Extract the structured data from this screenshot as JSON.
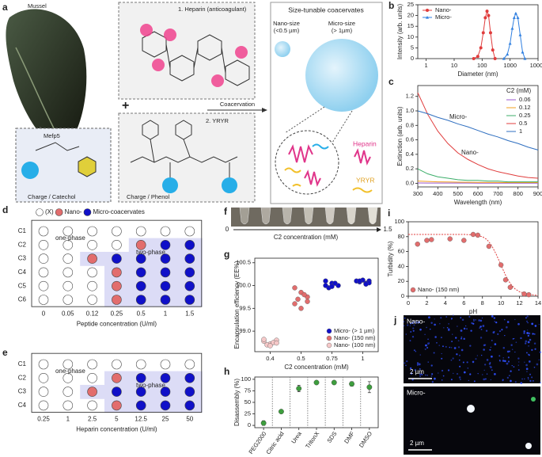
{
  "panel_labels": [
    "a",
    "b",
    "c",
    "d",
    "e",
    "f",
    "g",
    "h",
    "i",
    "j"
  ],
  "diagram": {
    "mussel": "Mussel",
    "mefp5": "Mefp5",
    "charge_catechol": "Charge / Catechol",
    "heparin_title": "1. Heparin (anticoagulant)",
    "yryr_title": "2. YRYR",
    "charge_phenol": "Charge / Phenol",
    "plus": "+",
    "arrow": "Coacervation",
    "coacervates_title": "Size-tunable coacervates",
    "nano_size": "Nano-size",
    "nano_range": "(<0.5 µm)",
    "micro_size": "Micro-size",
    "micro_range": "(> 1µm)",
    "heparin": "Heparin",
    "yryr": "YRYR"
  },
  "chart_data": [
    {
      "type": "line",
      "xlabel": "Diameter (nm)",
      "ylabel": "Intensity (arb. units)",
      "xscale": "log",
      "xlim": [
        0.5,
        10000
      ],
      "xticks": [
        1,
        10,
        100,
        1000,
        10000
      ],
      "ylim": [
        0,
        25
      ],
      "yticks": [
        0,
        5,
        10,
        15,
        20,
        25
      ],
      "legend": "upper left",
      "series": [
        {
          "name": "Nano-",
          "color": "#e03c3c",
          "marker": "circle",
          "x": [
            50,
            70,
            90,
            110,
            130,
            150,
            170,
            200,
            240,
            290
          ],
          "values": [
            0,
            1,
            5,
            12,
            19,
            22,
            20,
            12,
            4,
            0
          ]
        },
        {
          "name": "Micro-",
          "color": "#2f7fe0",
          "marker": "triangle",
          "x": [
            600,
            800,
            1000,
            1200,
            1400,
            1600,
            1900,
            2300,
            2800,
            3400
          ],
          "values": [
            0,
            2,
            7,
            14,
            19,
            21,
            19,
            11,
            3,
            0
          ]
        }
      ]
    },
    {
      "type": "line",
      "xlabel": "Wavelength (nm)",
      "ylabel": "Extinction (arb. units)",
      "xlim": [
        300,
        900
      ],
      "xticks": [
        300,
        400,
        500,
        600,
        700,
        800,
        900
      ],
      "ylim": [
        -0.05,
        1.35
      ],
      "yticks": [
        {
          "value": 0,
          "label": "0.0"
        },
        0.2,
        0.4,
        0.6,
        0.8,
        {
          "value": 1,
          "label": "1.0"
        },
        1.2
      ],
      "legend": "upper right",
      "legend_title": "C2 (mM)",
      "annotations": [
        "Micro-",
        "Nano-"
      ],
      "series": [
        {
          "name": "0.06",
          "color": "#9b59d0",
          "x": [
            300,
            350,
            400,
            450,
            500,
            550,
            600,
            650,
            700,
            750,
            800,
            850,
            900
          ],
          "values": [
            0.005,
            0.004,
            0.004,
            0.003,
            0.003,
            0.003,
            0.002,
            0.002,
            0.002,
            0.002,
            0.002,
            0.002,
            0.002
          ]
        },
        {
          "name": "0.12",
          "color": "#f0a020",
          "x": [
            300,
            350,
            400,
            450,
            500,
            550,
            600,
            650,
            700,
            750,
            800,
            850,
            900
          ],
          "values": [
            0.03,
            0.025,
            0.02,
            0.018,
            0.016,
            0.014,
            0.013,
            0.012,
            0.011,
            0.01,
            0.01,
            0.01,
            0.01
          ]
        },
        {
          "name": "0.25",
          "color": "#3cae6a",
          "x": [
            300,
            350,
            400,
            450,
            500,
            550,
            600,
            650,
            700,
            750,
            800,
            850,
            900
          ],
          "values": [
            0.2,
            0.13,
            0.09,
            0.07,
            0.05,
            0.04,
            0.04,
            0.03,
            0.03,
            0.02,
            0.02,
            0.02,
            0.02
          ]
        },
        {
          "name": "0.5",
          "color": "#e03c3c",
          "x": [
            300,
            350,
            400,
            450,
            500,
            550,
            600,
            650,
            700,
            750,
            800,
            850,
            900
          ],
          "values": [
            1.25,
            0.95,
            0.72,
            0.55,
            0.42,
            0.33,
            0.26,
            0.2,
            0.16,
            0.13,
            0.1,
            0.08,
            0.07
          ]
        },
        {
          "name": "1",
          "color": "#2f6fc0",
          "x": [
            300,
            350,
            400,
            450,
            500,
            550,
            600,
            650,
            700,
            750,
            800,
            850,
            900
          ],
          "values": [
            1.0,
            0.96,
            0.91,
            0.87,
            0.82,
            0.78,
            0.73,
            0.68,
            0.64,
            0.59,
            0.55,
            0.5,
            0.46
          ]
        }
      ]
    },
    {
      "type": "dot-grid",
      "rows": [
        "C1",
        "C2",
        "C3",
        "C4",
        "C5",
        "C6"
      ],
      "categories": [
        "0",
        "0.05",
        "0.12",
        "0.25",
        "0.5",
        "1",
        "1.5"
      ],
      "xlabel": "Peptide concentration (U/ml)",
      "state_labels": [
        "(X)",
        "Nano-",
        "Micro-coacervates"
      ],
      "state_colors": [
        "#ffffff",
        "#e26d6d",
        "#1010c8"
      ],
      "annotations": [
        "one-phase",
        "two-phase"
      ],
      "values": [
        [
          0,
          0,
          0,
          0,
          0,
          0,
          0
        ],
        [
          0,
          0,
          0,
          0,
          1,
          2,
          2
        ],
        [
          0,
          0,
          1,
          2,
          2,
          2,
          2
        ],
        [
          0,
          0,
          0,
          1,
          2,
          2,
          2
        ],
        [
          0,
          0,
          0,
          1,
          2,
          2,
          2
        ],
        [
          0,
          0,
          0,
          1,
          2,
          2,
          2
        ]
      ]
    },
    {
      "type": "dot-grid",
      "rows": [
        "C1",
        "C2",
        "C3",
        "C4"
      ],
      "categories": [
        "0.25",
        "1",
        "2.5",
        "5",
        "12.5",
        "25",
        "50"
      ],
      "xlabel": "Heparin concentration (U/ml)",
      "state_colors": [
        "#ffffff",
        "#e26d6d",
        "#1010c8"
      ],
      "annotations": [
        "one-phase",
        "two-phase"
      ],
      "values": [
        [
          0,
          0,
          0,
          0,
          0,
          0,
          0
        ],
        [
          0,
          0,
          0,
          1,
          2,
          2,
          2
        ],
        [
          0,
          0,
          1,
          2,
          2,
          2,
          2
        ],
        [
          0,
          0,
          0,
          1,
          2,
          2,
          2
        ]
      ]
    },
    {
      "type": "strip",
      "xlabel": "C2 concentration (mM)",
      "xlim": [
        0,
        1.5
      ],
      "xticks": [
        0,
        1.5
      ]
    },
    {
      "type": "scatter",
      "xlabel": "C2 concentration (mM)",
      "ylabel": "Encapsulation efficiency (EE%)",
      "categories": [
        "0.4",
        "0.5",
        "0.75",
        "1"
      ],
      "ylim": [
        98.55,
        100.6
      ],
      "yticks": [
        {
          "value": 99,
          "label": "99.0"
        },
        99.5,
        {
          "value": 100,
          "label": "100.0"
        },
        100.5
      ],
      "legend": "lower right",
      "series": [
        {
          "name": "Micro- (> 1 µm)",
          "color": "#1010c8",
          "x": [
            "0.75",
            "0.75",
            "0.75",
            "0.75",
            "0.75",
            "0.75",
            "0.75",
            "1",
            "1",
            "1",
            "1",
            "1",
            "1",
            "1",
            "1"
          ],
          "values": [
            100.1,
            100.05,
            100.0,
            99.95,
            100.05,
            100.0,
            99.98,
            100.1,
            100.08,
            100.05,
            100.1,
            100.12,
            100.06,
            100.1,
            100.03
          ]
        },
        {
          "name": "Nano- (150 nm)",
          "color": "#e26d6d",
          "x": [
            "0.5",
            "0.5",
            "0.5",
            "0.5",
            "0.5",
            "0.5",
            "0.5",
            "0.5"
          ],
          "values": [
            99.95,
            99.85,
            99.75,
            99.7,
            99.8,
            99.6,
            99.5,
            99.65
          ]
        },
        {
          "name": "Nano- (100 nm)",
          "color": "#f5c8c8",
          "x": [
            "0.4",
            "0.4",
            "0.4",
            "0.4",
            "0.4",
            "0.4",
            "0.4",
            "0.4"
          ],
          "values": [
            98.78,
            98.72,
            98.8,
            98.7,
            98.75,
            98.82,
            98.68,
            98.74
          ]
        }
      ]
    },
    {
      "type": "errorbar",
      "ylabel": "Disassembly (%)",
      "categories": [
        "PEG2000",
        "Citric acid",
        "Urea",
        "TritonX",
        "SDS",
        "DMF",
        "DMSO"
      ],
      "values": [
        5,
        30,
        80,
        93,
        93,
        90,
        83
      ],
      "errors": [
        5,
        3,
        7,
        2,
        2,
        5,
        12
      ],
      "color": "#3e9e3e",
      "ylim": [
        -5,
        105
      ],
      "yticks": [
        0,
        25,
        50,
        75,
        100
      ]
    },
    {
      "type": "scatter",
      "xlabel": "pH",
      "ylabel": "Turbidity (%)",
      "xlim": [
        0,
        14
      ],
      "xticks": [
        0,
        2,
        4,
        6,
        8,
        10,
        12,
        14
      ],
      "ylim": [
        0,
        100
      ],
      "yticks": [
        0,
        20,
        40,
        60,
        80,
        100
      ],
      "legend": "lower left",
      "series": [
        {
          "name": "Nano- (150 nm)",
          "color": "#e26d6d",
          "x": [
            1,
            2,
            2.5,
            4.5,
            6,
            7,
            7.5,
            8.7,
            10,
            10.5,
            11,
            12.5,
            13
          ],
          "values": [
            70,
            75,
            76,
            77,
            75,
            83,
            82,
            67,
            42,
            22,
            12,
            3,
            2
          ]
        }
      ],
      "fit": {
        "color": "#e03c3c",
        "x": [
          0,
          2,
          4,
          6,
          7,
          8,
          8.5,
          9,
          9.5,
          10,
          10.5,
          11,
          11.5,
          12,
          13,
          14
        ],
        "values": [
          83,
          83,
          83,
          83,
          82.5,
          80,
          76,
          68,
          56,
          42,
          28,
          17,
          10,
          6,
          2.5,
          1
        ]
      }
    }
  ],
  "micrographs": [
    {
      "label": "Nano-",
      "scale_bar": "2 µm"
    },
    {
      "label": "Micro-",
      "scale_bar": "2 µm"
    }
  ]
}
